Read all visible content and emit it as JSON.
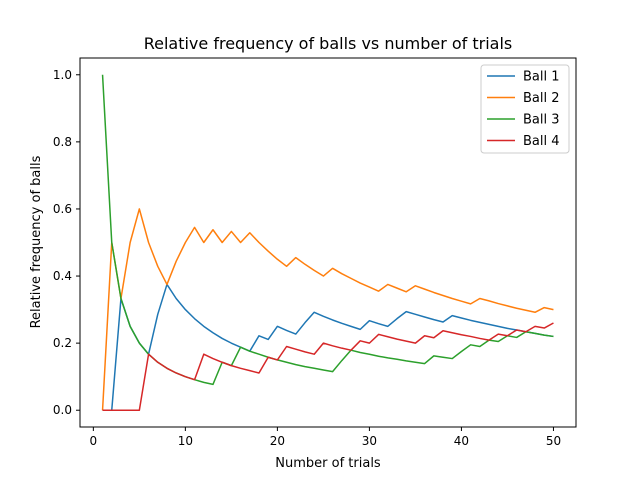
{
  "chart_data": {
    "type": "line",
    "title": "Relative frequency of balls vs number of trials",
    "xlabel": "Number of trials",
    "ylabel": "Relative frequency of balls",
    "xlim": [
      -1.45,
      52.45
    ],
    "ylim": [
      -0.05,
      1.05
    ],
    "xticks": [
      0,
      10,
      20,
      30,
      40,
      50
    ],
    "yticks": [
      0.0,
      0.2,
      0.4,
      0.6,
      0.8,
      1.0
    ],
    "xtick_labels": [
      "0",
      "10",
      "20",
      "30",
      "40",
      "50"
    ],
    "ytick_labels": [
      "0.0",
      "0.2",
      "0.4",
      "0.6",
      "0.8",
      "1.0"
    ],
    "grid": false,
    "legend_position": "top-right",
    "x": [
      1,
      2,
      3,
      4,
      5,
      6,
      7,
      8,
      9,
      10,
      11,
      12,
      13,
      14,
      15,
      16,
      17,
      18,
      19,
      20,
      21,
      22,
      23,
      24,
      25,
      26,
      27,
      28,
      29,
      30,
      31,
      32,
      33,
      34,
      35,
      36,
      37,
      38,
      39,
      40,
      41,
      42,
      43,
      44,
      45,
      46,
      47,
      48,
      49,
      50
    ],
    "series": [
      {
        "name": "Ball 1",
        "color": "#1f77b4",
        "values": [
          0,
          0,
          0.333,
          0.25,
          0.2,
          0.167,
          0.286,
          0.375,
          0.333,
          0.3,
          0.273,
          0.25,
          0.231,
          0.214,
          0.2,
          0.188,
          0.176,
          0.222,
          0.211,
          0.25,
          0.238,
          0.227,
          0.261,
          0.292,
          0.28,
          0.269,
          0.259,
          0.25,
          0.241,
          0.267,
          0.258,
          0.25,
          0.273,
          0.294,
          0.286,
          0.278,
          0.27,
          0.263,
          0.282,
          0.275,
          0.268,
          0.262,
          0.256,
          0.25,
          0.244,
          0.239,
          0.234,
          0.229,
          0.224,
          0.22
        ]
      },
      {
        "name": "Ball 2",
        "color": "#ff7f0e",
        "values": [
          0,
          0.5,
          0.333,
          0.5,
          0.6,
          0.5,
          0.429,
          0.375,
          0.444,
          0.5,
          0.545,
          0.5,
          0.538,
          0.5,
          0.533,
          0.5,
          0.529,
          0.5,
          0.474,
          0.45,
          0.429,
          0.455,
          0.435,
          0.417,
          0.4,
          0.423,
          0.407,
          0.393,
          0.379,
          0.367,
          0.355,
          0.375,
          0.364,
          0.353,
          0.371,
          0.361,
          0.351,
          0.342,
          0.333,
          0.325,
          0.317,
          0.333,
          0.326,
          0.318,
          0.311,
          0.304,
          0.298,
          0.292,
          0.306,
          0.3
        ]
      },
      {
        "name": "Ball 3",
        "color": "#2ca02c",
        "values": [
          1.0,
          0.5,
          0.333,
          0.25,
          0.2,
          0.167,
          0.143,
          0.125,
          0.111,
          0.1,
          0.091,
          0.083,
          0.077,
          0.143,
          0.133,
          0.188,
          0.176,
          0.167,
          0.158,
          0.15,
          0.143,
          0.136,
          0.13,
          0.125,
          0.12,
          0.115,
          0.148,
          0.179,
          0.172,
          0.167,
          0.161,
          0.156,
          0.152,
          0.147,
          0.143,
          0.139,
          0.162,
          0.158,
          0.154,
          0.175,
          0.195,
          0.19,
          0.209,
          0.205,
          0.222,
          0.217,
          0.234,
          0.229,
          0.224,
          0.22
        ]
      },
      {
        "name": "Ball 4",
        "color": "#d62728",
        "values": [
          0,
          0,
          0,
          0,
          0,
          0.167,
          0.143,
          0.125,
          0.111,
          0.1,
          0.091,
          0.167,
          0.154,
          0.143,
          0.133,
          0.125,
          0.118,
          0.111,
          0.158,
          0.15,
          0.19,
          0.182,
          0.174,
          0.167,
          0.2,
          0.192,
          0.185,
          0.179,
          0.207,
          0.2,
          0.226,
          0.219,
          0.212,
          0.206,
          0.2,
          0.222,
          0.216,
          0.237,
          0.231,
          0.225,
          0.22,
          0.214,
          0.209,
          0.227,
          0.222,
          0.239,
          0.234,
          0.25,
          0.245,
          0.26
        ]
      }
    ]
  }
}
